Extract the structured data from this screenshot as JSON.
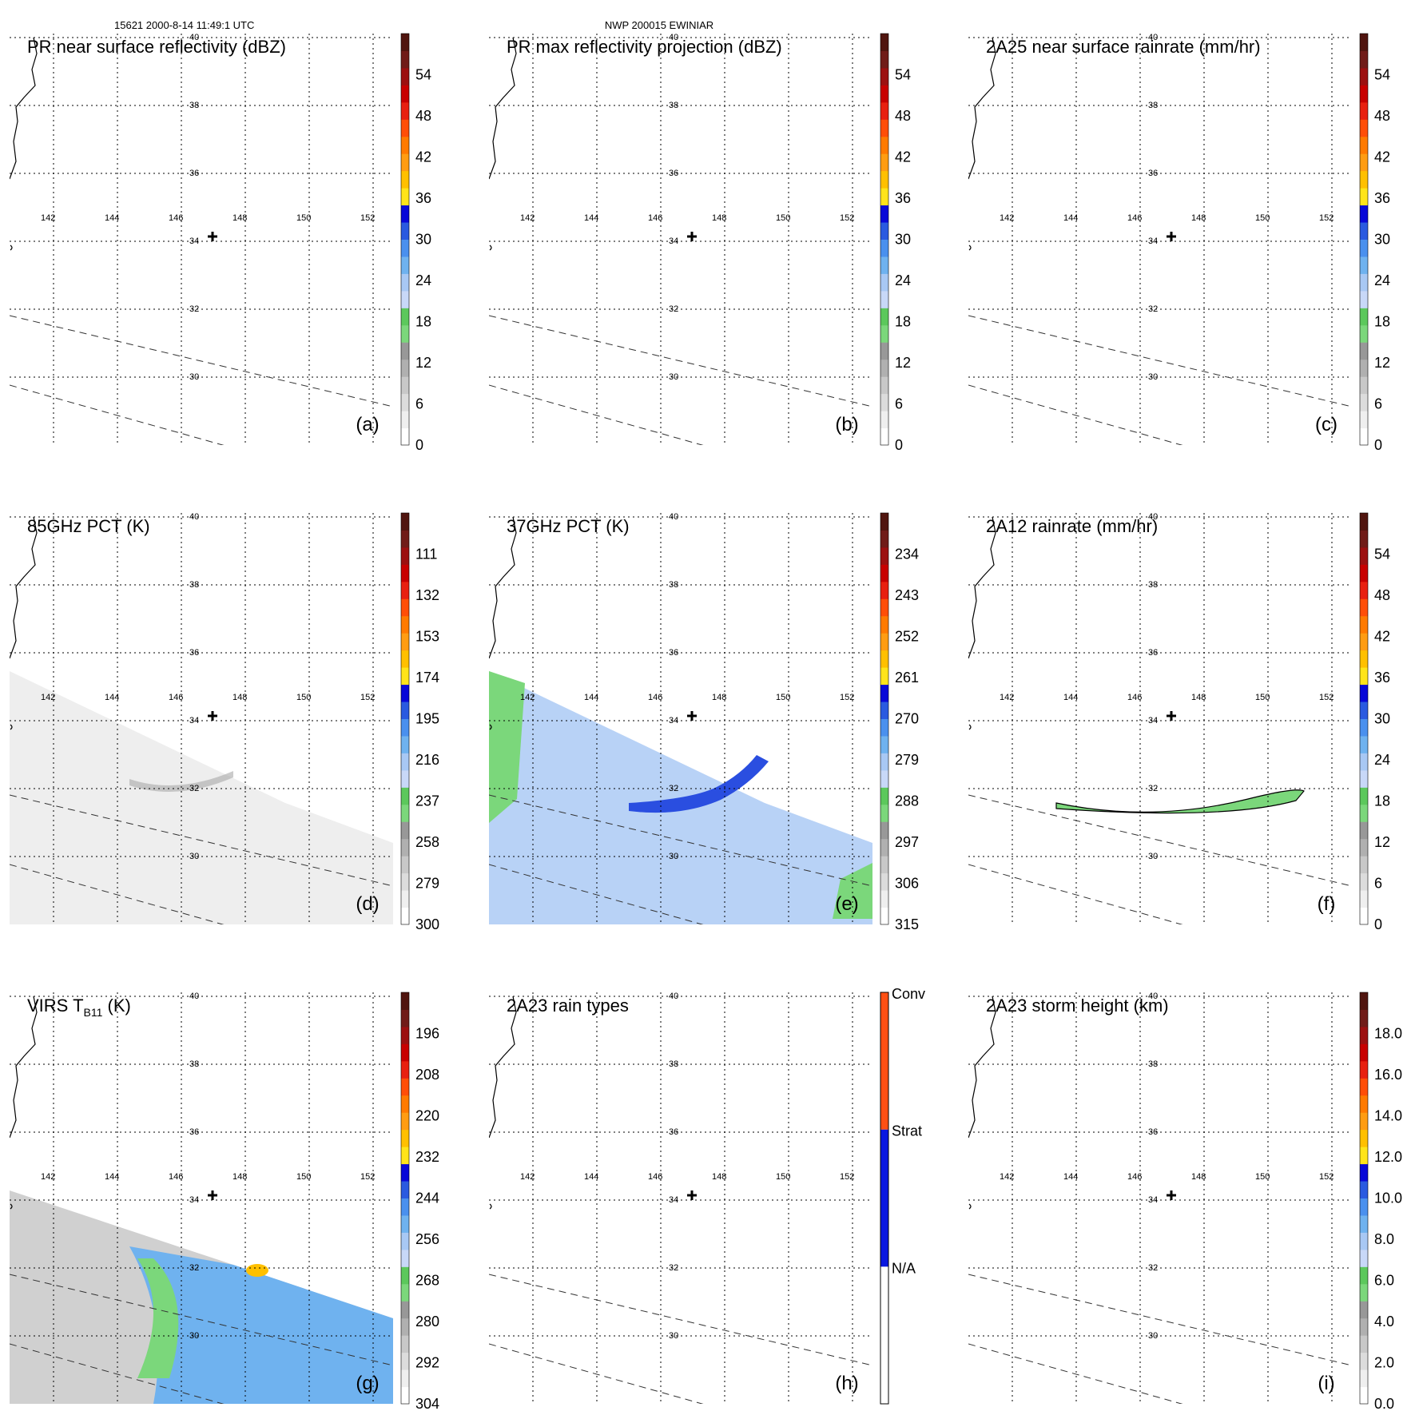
{
  "header": {
    "left": "15621 2000-8-14 11:49:1 UTC",
    "center": "NWP 200015 EWINIAR"
  },
  "map": {
    "lon_ticks": [
      "142",
      "144",
      "146",
      "148",
      "150",
      "152"
    ],
    "lat_ticks": [
      "40",
      "38",
      "36",
      "34",
      "32",
      "30"
    ]
  },
  "colors": {
    "ramp": [
      "#ffffff",
      "#efefef",
      "#dcdcdc",
      "#c8c8c8",
      "#b0b0b0",
      "#989898",
      "#7bd77b",
      "#5cc85c",
      "#c8d8f8",
      "#a8c8f4",
      "#6fb2ef",
      "#4a90ee",
      "#2a5ae0",
      "#0808d8",
      "#ffe41a",
      "#ffc000",
      "#ff9c12",
      "#ff7a00",
      "#ff4e08",
      "#e82010",
      "#c80000",
      "#9c1010",
      "#701c18",
      "#50150f"
    ],
    "raintype": [
      "#ffffff",
      "#0a18e0",
      "#ff5014"
    ]
  },
  "chart_data": [
    {
      "id": "a",
      "type": "heatmap",
      "title": "PR near surface reflectivity (dBZ)",
      "panel_label": "(a)",
      "cb_ticks": [
        "0",
        "6",
        "12",
        "18",
        "24",
        "30",
        "36",
        "42",
        "48",
        "54"
      ],
      "range": [
        0,
        60
      ],
      "unit": "dBZ"
    },
    {
      "id": "b",
      "type": "heatmap",
      "title": "PR max reflectivity projection (dBZ)",
      "panel_label": "(b)",
      "cb_ticks": [
        "0",
        "6",
        "12",
        "18",
        "24",
        "30",
        "36",
        "42",
        "48",
        "54"
      ],
      "range": [
        0,
        60
      ],
      "unit": "dBZ"
    },
    {
      "id": "c",
      "type": "heatmap",
      "title": "2A25 near surface rainrate (mm/hr)",
      "panel_label": "(c)",
      "cb_ticks": [
        "0",
        "6",
        "12",
        "18",
        "24",
        "30",
        "36",
        "42",
        "48",
        "54"
      ],
      "range": [
        0,
        60
      ],
      "unit": "mm/hr"
    },
    {
      "id": "d",
      "type": "heatmap",
      "title": "85GHz PCT (K)",
      "panel_label": "(d)",
      "cb_ticks": [
        "300",
        "279",
        "258",
        "237",
        "216",
        "195",
        "174",
        "153",
        "132",
        "111"
      ],
      "range": [
        300,
        90
      ],
      "unit": "K"
    },
    {
      "id": "e",
      "type": "heatmap",
      "title": "37GHz PCT (K)",
      "panel_label": "(e)",
      "cb_ticks": [
        "315",
        "306",
        "297",
        "288",
        "279",
        "270",
        "261",
        "252",
        "243",
        "234"
      ],
      "range": [
        315,
        225
      ],
      "unit": "K"
    },
    {
      "id": "f",
      "type": "heatmap",
      "title": "2A12 rainrate (mm/hr)",
      "panel_label": "(f)",
      "cb_ticks": [
        "0",
        "6",
        "12",
        "18",
        "24",
        "30",
        "36",
        "42",
        "48",
        "54"
      ],
      "range": [
        0,
        60
      ],
      "unit": "mm/hr"
    },
    {
      "id": "g",
      "type": "heatmap",
      "title": "VIRS T",
      "title_sub": "B11",
      "title_tail": " (K)",
      "panel_label": "(g)",
      "cb_ticks": [
        "304",
        "292",
        "280",
        "268",
        "256",
        "244",
        "232",
        "220",
        "208",
        "196"
      ],
      "range": [
        304,
        184
      ],
      "unit": "K"
    },
    {
      "id": "h",
      "type": "heatmap",
      "title": "2A23 rain types",
      "panel_label": "(h)",
      "categories": [
        "N/A",
        "Strat",
        "Conv"
      ]
    },
    {
      "id": "i",
      "type": "heatmap",
      "title": "2A23 storm height (km)",
      "panel_label": "(i)",
      "cb_ticks": [
        "0.0",
        "2.0",
        "4.0",
        "6.0",
        "8.0",
        "10.0",
        "12.0",
        "14.0",
        "16.0",
        "18.0"
      ],
      "range": [
        0,
        20
      ],
      "unit": "km"
    }
  ]
}
